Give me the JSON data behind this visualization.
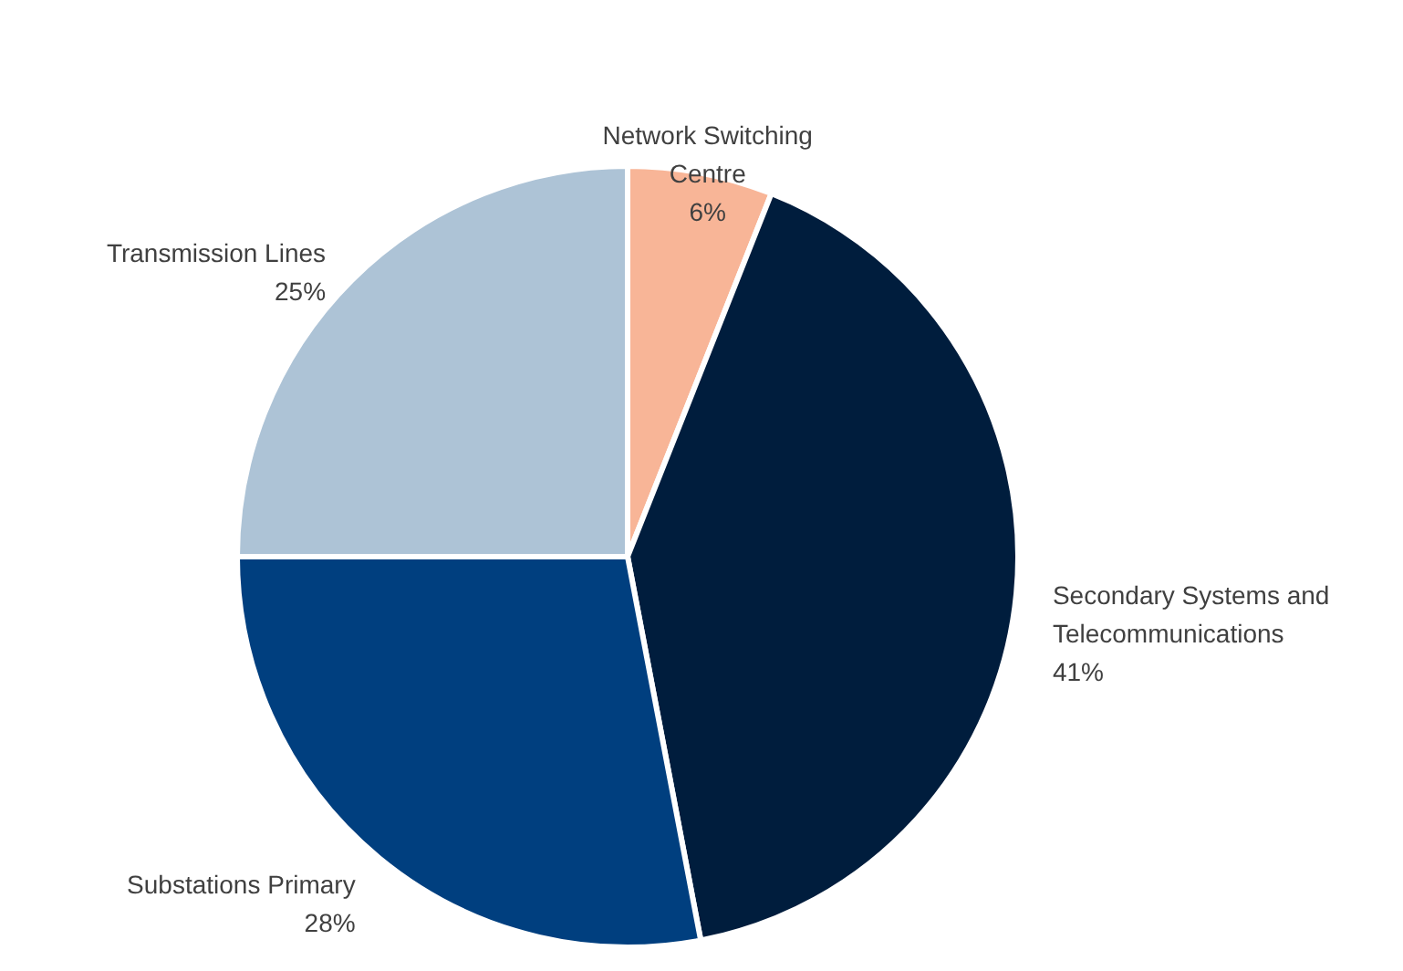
{
  "chart_data": {
    "type": "pie",
    "categories": [
      "Network Switching Centre",
      "Secondary Systems and Telecommunications",
      "Substations Primary",
      "Transmission Lines"
    ],
    "values": [
      6,
      41,
      28,
      25
    ],
    "colors": [
      "#f8b597",
      "#001d3d",
      "#003f7f",
      "#adc3d6"
    ],
    "value_labels": [
      "6%",
      "41%",
      "28%",
      "25%"
    ]
  }
}
